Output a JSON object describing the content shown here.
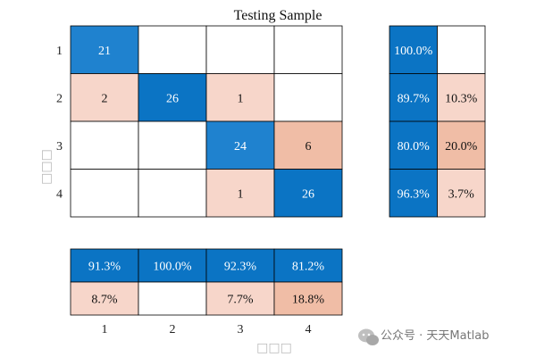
{
  "chart_data": {
    "type": "heatmap",
    "title": "Testing Sample",
    "xlabel": "□□□",
    "ylabel": "□□□",
    "class_labels": [
      "1",
      "2",
      "3",
      "4"
    ],
    "confusion_matrix": [
      [
        21,
        null,
        null,
        null
      ],
      [
        2,
        26,
        1,
        null
      ],
      [
        null,
        null,
        24,
        6
      ],
      [
        null,
        null,
        1,
        26
      ]
    ],
    "row_summary": [
      [
        "100.0%",
        ""
      ],
      [
        "89.7%",
        "10.3%"
      ],
      [
        "80.0%",
        "20.0%"
      ],
      [
        "96.3%",
        "3.7%"
      ]
    ],
    "column_summary": [
      [
        "91.3%",
        "100.0%",
        "92.3%",
        "81.2%"
      ],
      [
        "8.7%",
        "",
        "7.7%",
        "18.8%"
      ]
    ]
  },
  "colors": {
    "correct_strong": "#0b74c4",
    "correct_light": "#1f82cf",
    "error_strong": "#f0bda6",
    "error_light": "#f7d6ca",
    "grid": "#000000"
  },
  "watermark": {
    "text": "公众号 · 天天Matlab",
    "icon": "wechat-icon"
  }
}
